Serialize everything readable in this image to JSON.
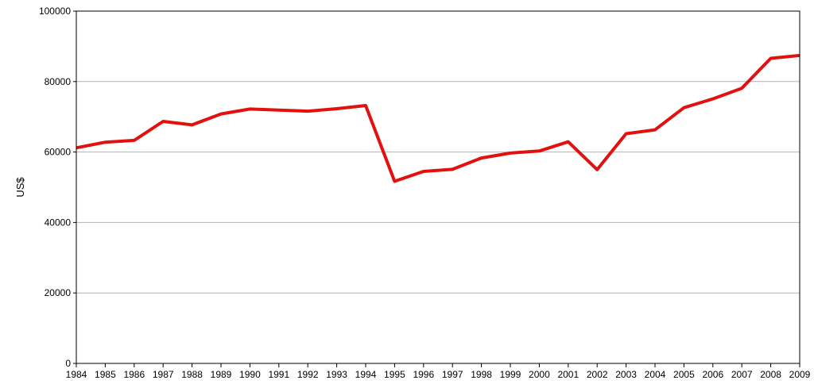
{
  "chart_data": {
    "type": "line",
    "title": "",
    "xlabel": "",
    "ylabel": "US$",
    "x": [
      "1984",
      "1985",
      "1986",
      "1987",
      "1988",
      "1989",
      "1990",
      "1991",
      "1992",
      "1993",
      "1994",
      "1995",
      "1996",
      "1997",
      "1998",
      "1999",
      "2000",
      "2001",
      "2002",
      "2003",
      "2004",
      "2005",
      "2006",
      "2007",
      "2008",
      "2009"
    ],
    "series": [
      {
        "name": "",
        "color": "#e31010",
        "values": [
          61200,
          62800,
          63300,
          68700,
          67700,
          70800,
          72200,
          71900,
          71600,
          72300,
          73200,
          51700,
          54500,
          55100,
          58300,
          59700,
          60300,
          62900,
          55000,
          65200,
          66300,
          72600,
          75100,
          78100,
          86600,
          87400
        ]
      }
    ],
    "ylim": [
      0,
      100000
    ],
    "yticks": [
      "0",
      "20000",
      "40000",
      "60000",
      "80000",
      "100000"
    ],
    "grid": true,
    "legend": "none"
  }
}
